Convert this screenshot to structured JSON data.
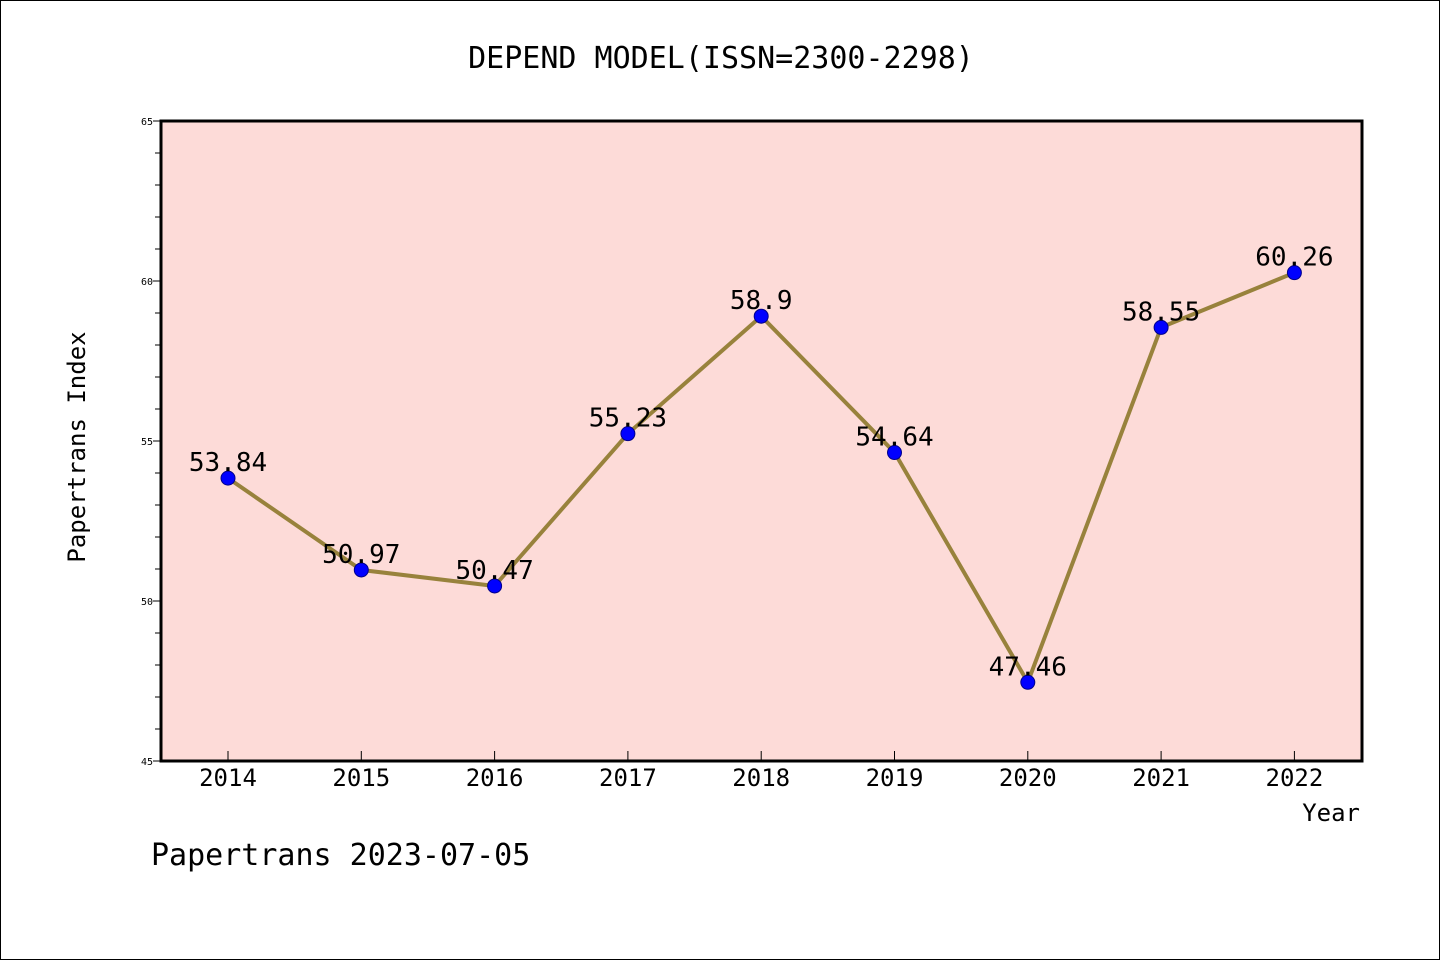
{
  "chart_data": {
    "type": "line",
    "title": "DEPEND MODEL(ISSN=2300-2298)",
    "xlabel": "Year",
    "ylabel": "Papertrans Index",
    "categories": [
      "2014",
      "2015",
      "2016",
      "2017",
      "2018",
      "2019",
      "2020",
      "2021",
      "2022"
    ],
    "values": [
      53.84,
      50.97,
      50.47,
      55.23,
      58.9,
      54.64,
      47.46,
      58.55,
      60.26
    ],
    "data_labels": [
      "53.84",
      "50.97",
      "50.47",
      "55.23",
      "58.9",
      "54.64",
      "47.46",
      "58.55",
      "60.26"
    ],
    "ylim": [
      45,
      65
    ],
    "yticks": [
      "45",
      "50",
      "55",
      "60",
      "65"
    ],
    "grid": false,
    "legend": "none",
    "colors": {
      "plot_background": "#fddbd8",
      "line": "#98823c",
      "marker": "#0000ff"
    }
  },
  "footer": {
    "text": "Papertrans 2023-07-05"
  }
}
